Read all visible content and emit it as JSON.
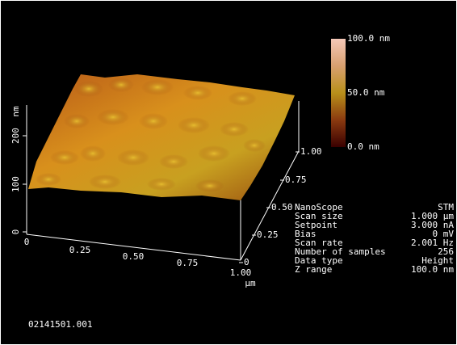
{
  "colorbar": {
    "labels": [
      "100.0 nm",
      "50.0 nm",
      "0.0 nm"
    ]
  },
  "z_axis": {
    "unit": "nm",
    "ticks": [
      "0",
      "100",
      "200"
    ]
  },
  "x_axis": {
    "ticks": [
      "0",
      "0.25",
      "0.50",
      "0.75",
      "1.00"
    ],
    "unit": "µm"
  },
  "y_axis": {
    "ticks": [
      "0",
      "0.25",
      "0.50",
      "0.75",
      "1.00"
    ]
  },
  "info": {
    "rows": [
      [
        "NanoScope",
        "STM"
      ],
      [
        "Scan size",
        "1.000 µm"
      ],
      [
        "Setpoint",
        "3.000 nA"
      ],
      [
        "Bias",
        "0 mV"
      ],
      [
        "Scan rate",
        "2.001 Hz"
      ],
      [
        "Number of samples",
        "256"
      ],
      [
        "Data type",
        "Height"
      ],
      [
        "Z range",
        "100.0 nm"
      ]
    ]
  },
  "filename": "02141501.001"
}
